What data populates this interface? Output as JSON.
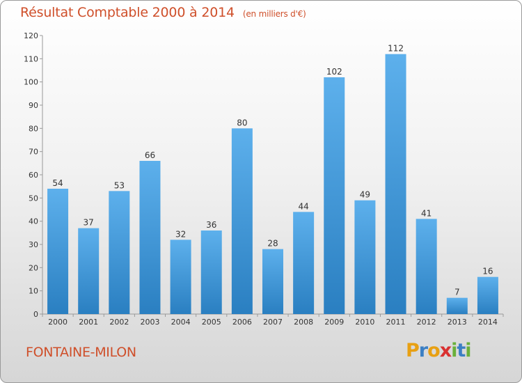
{
  "header": {
    "title": "Résultat Comptable 2000 à 2014",
    "subtitle": "(en milliers d'€)"
  },
  "footer": {
    "town": "FONTAINE-MILON",
    "logo_letters": [
      "P",
      "r",
      "o",
      "x",
      "i",
      "t",
      "i"
    ],
    "logo_colors": [
      "#e8a013",
      "#3b7fc4",
      "#e8a013",
      "#d93030",
      "#6ab03b",
      "#3b7fc4",
      "#6ab03b"
    ]
  },
  "chart_data": {
    "type": "bar",
    "title": "Résultat Comptable 2000 à 2014",
    "subtitle": "(en milliers d'€)",
    "xlabel": "",
    "ylabel": "",
    "categories": [
      "2000",
      "2001",
      "2002",
      "2003",
      "2004",
      "2005",
      "2006",
      "2007",
      "2008",
      "2009",
      "2010",
      "2011",
      "2012",
      "2013",
      "2014"
    ],
    "values": [
      54,
      37,
      53,
      66,
      32,
      36,
      80,
      28,
      44,
      102,
      49,
      112,
      41,
      7,
      16
    ],
    "ylim": [
      0,
      120
    ],
    "yticks": [
      0,
      10,
      20,
      30,
      40,
      50,
      60,
      70,
      80,
      90,
      100,
      110,
      120
    ],
    "grid": false,
    "bar_color": "#3a95dc"
  }
}
